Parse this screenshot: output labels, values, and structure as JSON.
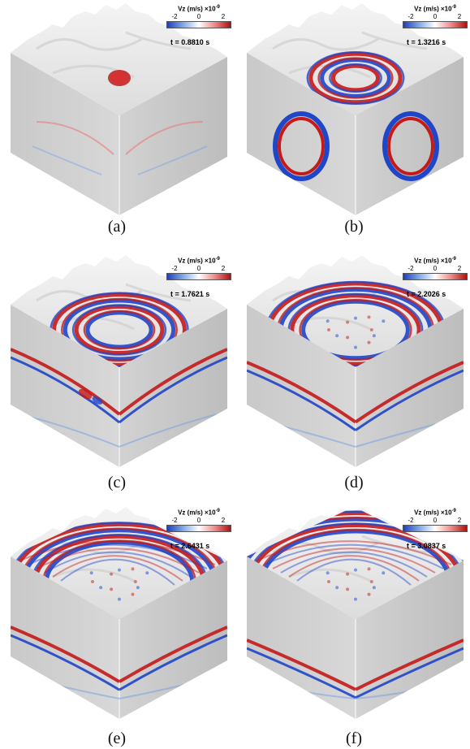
{
  "colorbar": {
    "label_prefix": "Vz (m/s)",
    "label_times": "×10",
    "label_exp": "-9",
    "ticks": [
      "-2",
      "0",
      "2"
    ],
    "colors": [
      "#1f3fbf",
      "#7fa9e8",
      "#ffffff",
      "#f08a8a",
      "#b01010"
    ]
  },
  "time_unit": "s",
  "panels": [
    {
      "caption": "(a)",
      "time": "t = 0.8810",
      "stage": 0
    },
    {
      "caption": "(b)",
      "time": "t = 1.3216",
      "stage": 1
    },
    {
      "caption": "(c)",
      "time": "t = 1.7621",
      "stage": 2
    },
    {
      "caption": "(d)",
      "time": "t = 2.2026",
      "stage": 3
    },
    {
      "caption": "(e)",
      "time": "t = 2.6431",
      "stage": 4
    },
    {
      "caption": "(f)",
      "time": "t = 3.0837",
      "stage": 5
    }
  ]
}
